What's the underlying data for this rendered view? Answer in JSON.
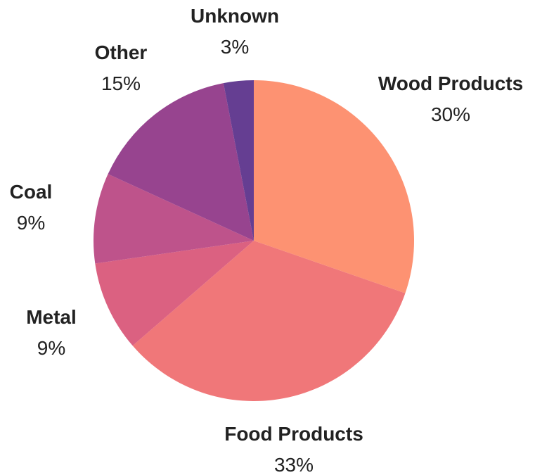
{
  "chart_data": {
    "type": "pie",
    "title": "",
    "start": "top",
    "direction": "clockwise",
    "slices": [
      {
        "label": "Wood Products",
        "value": 30,
        "value_label": "30%",
        "color": "#FD9272"
      },
      {
        "label": "Food Products",
        "value": 33,
        "value_label": "33%",
        "color": "#F07779"
      },
      {
        "label": "Metal",
        "value": 9,
        "value_label": "9%",
        "color": "#DB6181"
      },
      {
        "label": "Coal",
        "value": 9,
        "value_label": "9%",
        "color": "#BE538B"
      },
      {
        "label": "Other",
        "value": 15,
        "value_label": "15%",
        "color": "#97448F"
      },
      {
        "label": "Unknown",
        "value": 3,
        "value_label": "3%",
        "color": "#653E92"
      }
    ]
  }
}
